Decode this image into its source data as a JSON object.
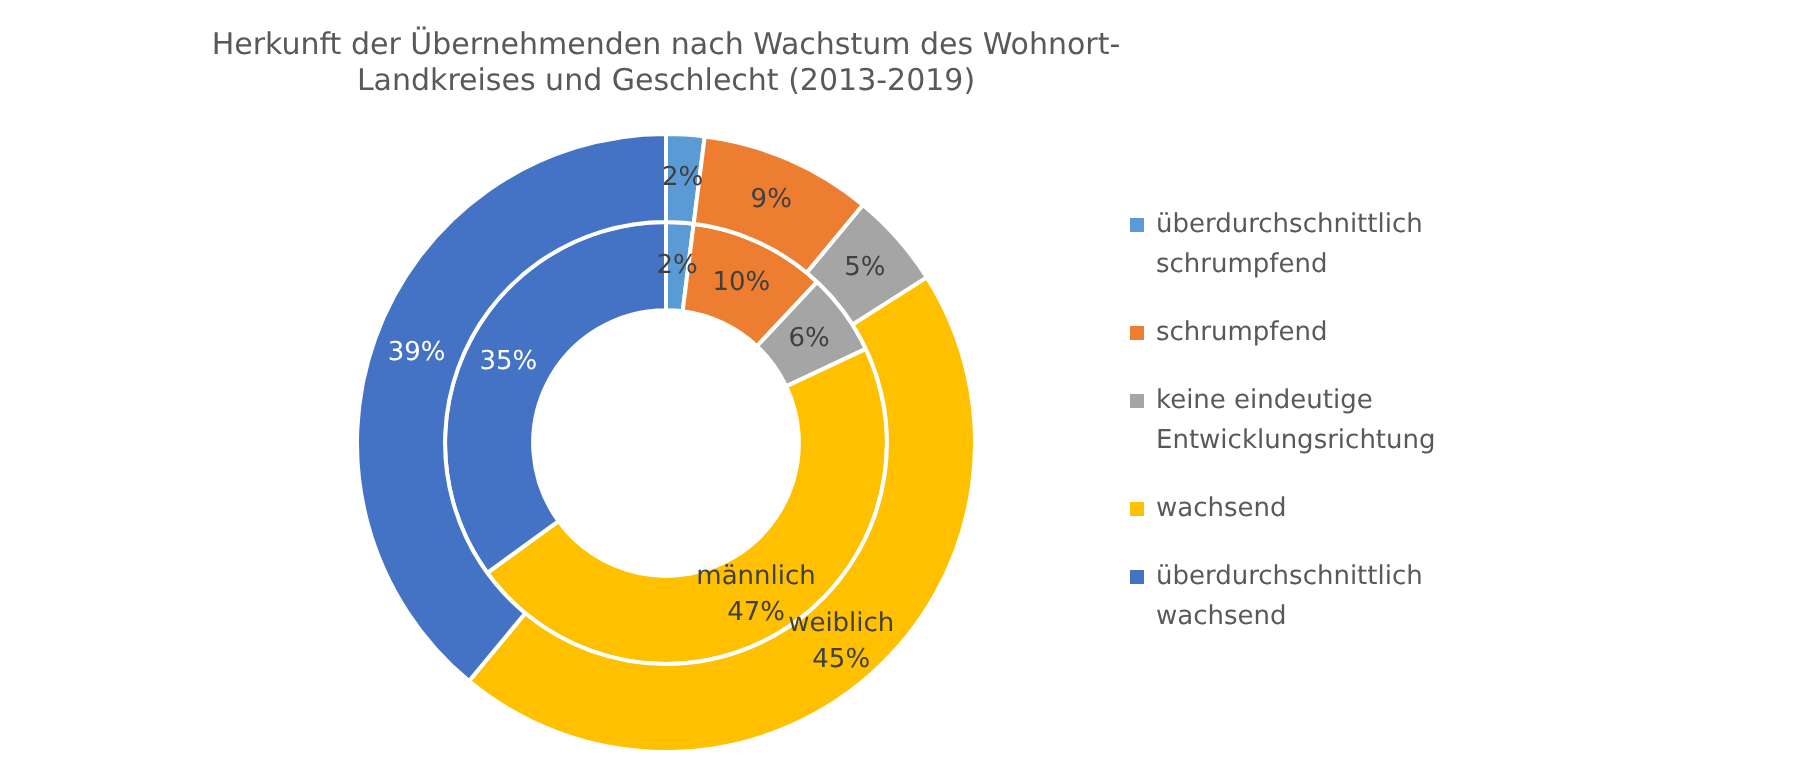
{
  "chart_data": {
    "type": "donut",
    "title": "Herkunft der Übernehmenden nach Wachstum des Wohnort-Landkreises und Geschlecht (2013-2019)",
    "categories": [
      "überdurchschnittlich schrumpfend",
      "schrumpfend",
      "keine eindeutige Entwicklungsrichtung",
      "wachsend",
      "überdurchschnittlich wachsend"
    ],
    "colors": [
      "#5b9bd5",
      "#ed7d31",
      "#a5a5a5",
      "#ffc000",
      "#4472c4"
    ],
    "series": [
      {
        "name": "weiblich",
        "values": [
          2,
          9,
          5,
          45,
          39
        ],
        "value_labels": [
          "2%",
          "9%",
          "5%",
          "45%",
          "39%"
        ]
      },
      {
        "name": "männlich",
        "values": [
          2,
          10,
          6,
          47,
          35
        ],
        "value_labels": [
          "2%",
          "10%",
          "6%",
          "47%",
          "35%"
        ]
      }
    ],
    "legend": "right"
  }
}
